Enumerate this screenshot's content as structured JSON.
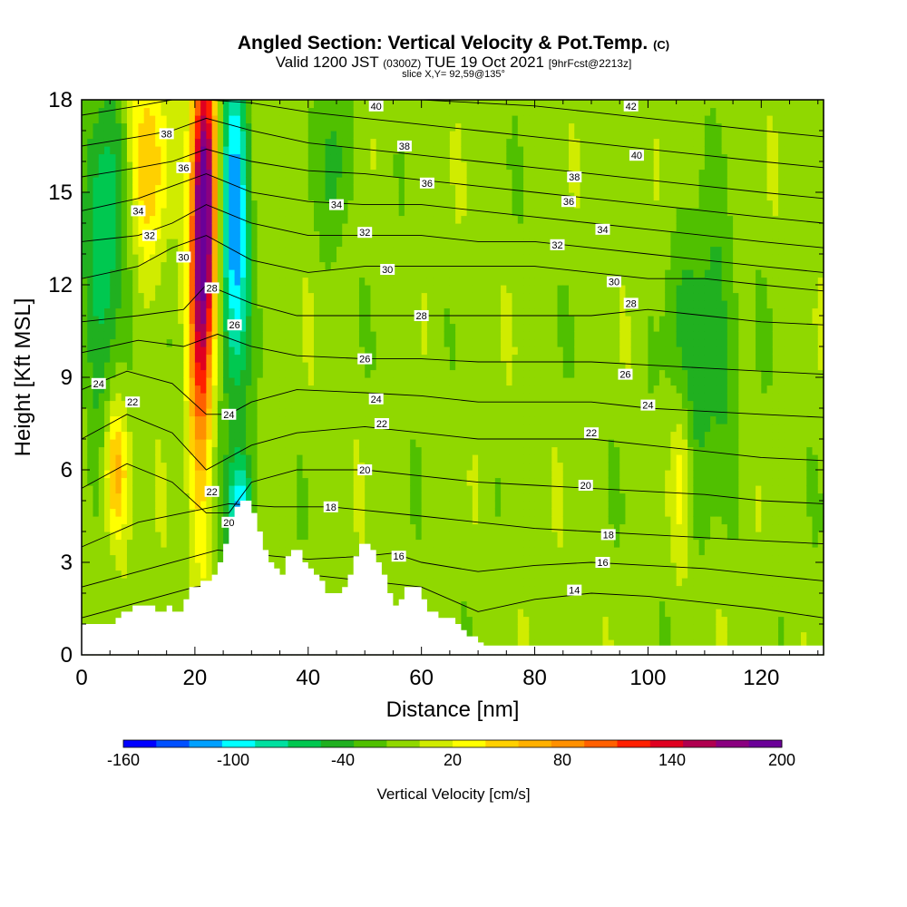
{
  "title": {
    "main": "Angled Section: Vertical Velocity & Pot.Temp.",
    "main_suffix": "(C)",
    "valid_prefix": "Valid 1200 JST",
    "valid_zulu": "(0300Z)",
    "valid_date": "TUE 19 Oct 2021",
    "forecast": "[9hrFcst@2213z]",
    "slice": "slice X,Y= 92,59@135°"
  },
  "chart_data": {
    "type": "heatmap",
    "title": "Angled Section: Vertical Velocity & Pot.Temp.",
    "xlabel": "Distance [nm]",
    "ylabel": "Height [Kft MSL]",
    "xlim": [
      0,
      131
    ],
    "ylim": [
      0,
      18
    ],
    "x_ticks": [
      0,
      20,
      40,
      60,
      80,
      100,
      120
    ],
    "y_ticks": [
      0,
      3,
      6,
      9,
      12,
      15,
      18
    ],
    "colorbar": {
      "label": "Vertical Velocity [cm/s]",
      "ticks": [
        -160,
        -100,
        -40,
        20,
        80,
        140,
        200
      ],
      "min": -160,
      "max": 200,
      "step": 20,
      "colors": [
        "#0000ff",
        "#0050ff",
        "#00a0ff",
        "#00ffff",
        "#00e0a0",
        "#00c850",
        "#20b020",
        "#50c000",
        "#90d800",
        "#d0ec00",
        "#ffff00",
        "#ffd000",
        "#ffb000",
        "#ff9000",
        "#ff6000",
        "#ff2000",
        "#e00020",
        "#b00050",
        "#8a0080",
        "#6a0098"
      ]
    },
    "velocity_features": [
      {
        "x": 21,
        "y": 12,
        "v": 150,
        "sx": 1.5,
        "sy": 5
      },
      {
        "x": 22,
        "y": 15,
        "v": 150,
        "sx": 1.4,
        "sy": 3
      },
      {
        "x": 27,
        "y": 14,
        "v": -130,
        "sx": 1.8,
        "sy": 4
      },
      {
        "x": 28,
        "y": 4.5,
        "v": -120,
        "sx": 1.5,
        "sy": 1.4
      },
      {
        "x": 6,
        "y": 6,
        "v": 90,
        "sx": 1.5,
        "sy": 1.6
      },
      {
        "x": 4,
        "y": 13,
        "v": -70,
        "sx": 2.5,
        "sy": 4
      },
      {
        "x": 12,
        "y": 16,
        "v": 60,
        "sx": 2.5,
        "sy": 2.5
      },
      {
        "x": 110,
        "y": 10,
        "v": -50,
        "sx": 4,
        "sy": 3
      },
      {
        "x": 106,
        "y": 6,
        "v": 40,
        "sx": 1.2,
        "sy": 2
      },
      {
        "x": 45,
        "y": 16,
        "v": -40,
        "sx": 2,
        "sy": 2
      }
    ],
    "terrain": [
      [
        0,
        1
      ],
      [
        6,
        1
      ],
      [
        6,
        1.2
      ],
      [
        7,
        1.2
      ],
      [
        7,
        1.4
      ],
      [
        9,
        1.4
      ],
      [
        9,
        1.6
      ],
      [
        11,
        1.6
      ],
      [
        11,
        1.6
      ],
      [
        13,
        1.6
      ],
      [
        13,
        1.4
      ],
      [
        15,
        1.4
      ],
      [
        15,
        1.6
      ],
      [
        16,
        1.6
      ],
      [
        16,
        1.4
      ],
      [
        18,
        1.4
      ],
      [
        18,
        1.8
      ],
      [
        19,
        1.8
      ],
      [
        19,
        2.2
      ],
      [
        21,
        2.2
      ],
      [
        21,
        2.4
      ],
      [
        23,
        2.4
      ],
      [
        23,
        2.6
      ],
      [
        24,
        2.6
      ],
      [
        24,
        3
      ],
      [
        25,
        3
      ],
      [
        25,
        3.6
      ],
      [
        26,
        3.6
      ],
      [
        26,
        4.2
      ],
      [
        27,
        4.2
      ],
      [
        27,
        4.8
      ],
      [
        28,
        4.8
      ],
      [
        28,
        5
      ],
      [
        30,
        5
      ],
      [
        30,
        4.6
      ],
      [
        31,
        4.6
      ],
      [
        31,
        4
      ],
      [
        32,
        4
      ],
      [
        32,
        3.4
      ],
      [
        33,
        3.4
      ],
      [
        33,
        3
      ],
      [
        34,
        3
      ],
      [
        34,
        2.8
      ],
      [
        35,
        2.8
      ],
      [
        35,
        2.6
      ],
      [
        36,
        2.6
      ],
      [
        36,
        3.2
      ],
      [
        37,
        3.2
      ],
      [
        37,
        3.4
      ],
      [
        39,
        3.4
      ],
      [
        39,
        3
      ],
      [
        40,
        3
      ],
      [
        40,
        2.8
      ],
      [
        41,
        2.8
      ],
      [
        41,
        2.6
      ],
      [
        42,
        2.6
      ],
      [
        42,
        2.4
      ],
      [
        43,
        2.4
      ],
      [
        43,
        2
      ],
      [
        46,
        2
      ],
      [
        46,
        2.2
      ],
      [
        47,
        2.2
      ],
      [
        47,
        2.6
      ],
      [
        48,
        2.6
      ],
      [
        48,
        3.2
      ],
      [
        49,
        3.2
      ],
      [
        49,
        3.6
      ],
      [
        51,
        3.6
      ],
      [
        51,
        3.4
      ],
      [
        52,
        3.4
      ],
      [
        52,
        3
      ],
      [
        53,
        3
      ],
      [
        53,
        2.6
      ],
      [
        54,
        2.6
      ],
      [
        54,
        2
      ],
      [
        55,
        2
      ],
      [
        55,
        1.6
      ],
      [
        56,
        1.6
      ],
      [
        56,
        1.8
      ],
      [
        57,
        1.8
      ],
      [
        57,
        2.2
      ],
      [
        60,
        2.2
      ],
      [
        60,
        1.8
      ],
      [
        61,
        1.8
      ],
      [
        61,
        1.4
      ],
      [
        63,
        1.4
      ],
      [
        63,
        1.2
      ],
      [
        66,
        1.2
      ],
      [
        66,
        1
      ],
      [
        67,
        1
      ],
      [
        67,
        0.8
      ],
      [
        68,
        0.8
      ],
      [
        68,
        0.6
      ],
      [
        70,
        0.6
      ],
      [
        70,
        0.4
      ],
      [
        71,
        0.4
      ],
      [
        71,
        0.3
      ],
      [
        131,
        0.3
      ]
    ],
    "isentropes": [
      {
        "level": 14,
        "x": [
          0,
          20,
          40,
          60,
          70,
          80,
          90,
          100,
          110,
          120,
          131
        ],
        "y": [
          1.2,
          2.2,
          2.6,
          2.2,
          1.4,
          1.8,
          2.0,
          1.9,
          1.7,
          1.5,
          1.2
        ]
      },
      {
        "level": 16,
        "x": [
          0,
          12,
          24,
          34,
          40,
          50,
          55,
          60,
          70,
          80,
          90,
          100,
          110,
          120,
          131
        ],
        "y": [
          2.2,
          2.8,
          3.4,
          3.2,
          3.1,
          3.2,
          3.3,
          3.0,
          2.7,
          2.9,
          3.0,
          2.9,
          2.8,
          2.6,
          2.4
        ]
      },
      {
        "level": 18,
        "x": [
          0,
          10,
          18,
          26,
          34,
          44,
          60,
          70,
          80,
          90,
          100,
          110,
          120,
          131
        ],
        "y": [
          3.5,
          4.3,
          4.6,
          4.9,
          4.8,
          4.8,
          4.5,
          4.3,
          4.1,
          4.0,
          3.9,
          3.8,
          3.7,
          3.6
        ]
      },
      {
        "level": 20,
        "x": [
          0,
          8,
          16,
          22,
          26,
          30,
          38,
          50,
          60,
          70,
          80,
          90,
          100,
          110,
          120,
          131
        ],
        "y": [
          5.4,
          6.2,
          5.6,
          4.6,
          4.6,
          5.6,
          6.0,
          6.0,
          5.8,
          5.6,
          5.5,
          5.4,
          5.3,
          5.2,
          5.0,
          4.9
        ]
      },
      {
        "level": 22,
        "x": [
          0,
          8,
          16,
          22,
          26,
          30,
          38,
          50,
          60,
          70,
          80,
          90,
          100,
          110,
          120,
          131
        ],
        "y": [
          7.0,
          7.8,
          7.2,
          6.0,
          6.4,
          6.8,
          7.2,
          7.4,
          7.2,
          7.0,
          7.0,
          7.0,
          6.8,
          6.6,
          6.4,
          6.3
        ]
      },
      {
        "level": 24,
        "x": [
          0,
          8,
          16,
          22,
          26,
          30,
          38,
          50,
          60,
          70,
          80,
          90,
          100,
          110,
          120,
          131
        ],
        "y": [
          8.6,
          9.2,
          8.8,
          7.8,
          7.8,
          8.2,
          8.6,
          8.5,
          8.4,
          8.2,
          8.2,
          8.2,
          8.0,
          7.9,
          7.8,
          7.7
        ]
      },
      {
        "level": 26,
        "x": [
          0,
          10,
          18,
          24,
          30,
          38,
          50,
          60,
          70,
          80,
          90,
          100,
          110,
          120,
          131
        ],
        "y": [
          9.8,
          10.2,
          10.0,
          10.4,
          10.0,
          9.7,
          9.6,
          9.6,
          9.5,
          9.5,
          9.5,
          9.4,
          9.3,
          9.2,
          9.1
        ]
      },
      {
        "level": 28,
        "x": [
          0,
          10,
          18,
          22,
          30,
          38,
          50,
          60,
          70,
          80,
          90,
          100,
          110,
          120,
          131
        ],
        "y": [
          10.8,
          11.0,
          11.2,
          12.0,
          11.4,
          11.0,
          11.0,
          11.0,
          11.0,
          11.0,
          11.0,
          11.2,
          11.0,
          10.8,
          10.7
        ]
      },
      {
        "level": 30,
        "x": [
          0,
          10,
          16,
          22,
          30,
          40,
          50,
          60,
          70,
          80,
          90,
          100,
          110,
          120,
          131
        ],
        "y": [
          12.2,
          12.6,
          13.2,
          13.6,
          12.8,
          12.4,
          12.6,
          12.6,
          12.6,
          12.6,
          12.4,
          12.2,
          12.2,
          12.0,
          11.8
        ]
      },
      {
        "level": 32,
        "x": [
          0,
          10,
          16,
          22,
          30,
          40,
          50,
          60,
          70,
          80,
          90,
          100,
          110,
          120,
          131
        ],
        "y": [
          13.4,
          13.6,
          14.0,
          14.6,
          14.0,
          13.6,
          13.6,
          13.6,
          13.4,
          13.4,
          13.2,
          13.0,
          12.8,
          12.6,
          12.4
        ]
      },
      {
        "level": 34,
        "x": [
          0,
          10,
          16,
          22,
          30,
          40,
          50,
          60,
          70,
          80,
          90,
          100,
          110,
          120,
          131
        ],
        "y": [
          14.4,
          14.8,
          15.2,
          15.6,
          15.0,
          14.7,
          14.6,
          14.6,
          14.4,
          14.2,
          14.0,
          13.8,
          13.6,
          13.4,
          13.2
        ]
      },
      {
        "level": 36,
        "x": [
          0,
          10,
          16,
          22,
          30,
          40,
          50,
          60,
          70,
          80,
          90,
          100,
          110,
          120,
          131
        ],
        "y": [
          15.5,
          15.8,
          16.0,
          16.4,
          16.0,
          15.7,
          15.6,
          15.4,
          15.2,
          15.0,
          14.8,
          14.6,
          14.4,
          14.2,
          14.0
        ]
      },
      {
        "level": 38,
        "x": [
          0,
          10,
          16,
          22,
          30,
          40,
          50,
          60,
          70,
          80,
          90,
          100,
          110,
          120,
          131
        ],
        "y": [
          16.5,
          16.8,
          17.0,
          17.4,
          17.0,
          16.6,
          16.4,
          16.2,
          16.0,
          15.8,
          15.6,
          15.4,
          15.2,
          15.0,
          14.8
        ]
      },
      {
        "level": 40,
        "x": [
          0,
          10,
          16,
          22,
          30,
          40,
          50,
          60,
          70,
          80,
          90,
          100,
          110,
          120,
          131
        ],
        "y": [
          17.5,
          17.8,
          18.0,
          18.0,
          17.9,
          17.6,
          17.4,
          17.2,
          17.0,
          16.8,
          16.6,
          16.4,
          16.2,
          16.0,
          15.8
        ]
      },
      {
        "level": 42,
        "x": [
          40,
          50,
          60,
          70,
          80,
          90,
          100,
          110,
          120,
          131
        ],
        "y": [
          18.0,
          18.0,
          18.0,
          17.9,
          17.8,
          17.6,
          17.4,
          17.2,
          17.0,
          16.8
        ]
      }
    ],
    "contour_labels": [
      {
        "text": "42",
        "x": 97,
        "y": 17.8
      },
      {
        "text": "40",
        "x": 52,
        "y": 17.8
      },
      {
        "text": "40",
        "x": 98,
        "y": 16.2
      },
      {
        "text": "38",
        "x": 15,
        "y": 16.9
      },
      {
        "text": "38",
        "x": 57,
        "y": 16.5
      },
      {
        "text": "38",
        "x": 87,
        "y": 15.5
      },
      {
        "text": "36",
        "x": 18,
        "y": 15.8
      },
      {
        "text": "36",
        "x": 61,
        "y": 15.3
      },
      {
        "text": "36",
        "x": 86,
        "y": 14.7
      },
      {
        "text": "34",
        "x": 10,
        "y": 14.4
      },
      {
        "text": "34",
        "x": 45,
        "y": 14.6
      },
      {
        "text": "34",
        "x": 92,
        "y": 13.8
      },
      {
        "text": "32",
        "x": 12,
        "y": 13.6
      },
      {
        "text": "32",
        "x": 50,
        "y": 13.7
      },
      {
        "text": "32",
        "x": 84,
        "y": 13.3
      },
      {
        "text": "30",
        "x": 18,
        "y": 12.9
      },
      {
        "text": "30",
        "x": 54,
        "y": 12.5
      },
      {
        "text": "30",
        "x": 94,
        "y": 12.1
      },
      {
        "text": "28",
        "x": 23,
        "y": 11.9
      },
      {
        "text": "28",
        "x": 60,
        "y": 11.0
      },
      {
        "text": "28",
        "x": 97,
        "y": 11.4
      },
      {
        "text": "26",
        "x": 27,
        "y": 10.7
      },
      {
        "text": "26",
        "x": 50,
        "y": 9.6
      },
      {
        "text": "26",
        "x": 96,
        "y": 9.1
      },
      {
        "text": "24",
        "x": 3,
        "y": 8.8
      },
      {
        "text": "24",
        "x": 26,
        "y": 7.8
      },
      {
        "text": "24",
        "x": 52,
        "y": 8.3
      },
      {
        "text": "24",
        "x": 100,
        "y": 8.1
      },
      {
        "text": "22",
        "x": 9,
        "y": 8.2
      },
      {
        "text": "22",
        "x": 53,
        "y": 7.5
      },
      {
        "text": "22",
        "x": 90,
        "y": 7.2
      },
      {
        "text": "22",
        "x": 23,
        "y": 5.3
      },
      {
        "text": "20",
        "x": 50,
        "y": 6.0
      },
      {
        "text": "20",
        "x": 89,
        "y": 5.5
      },
      {
        "text": "20",
        "x": 26,
        "y": 4.3
      },
      {
        "text": "18",
        "x": 44,
        "y": 4.8
      },
      {
        "text": "18",
        "x": 93,
        "y": 3.9
      },
      {
        "text": "16",
        "x": 56,
        "y": 3.2
      },
      {
        "text": "16",
        "x": 92,
        "y": 3.0
      },
      {
        "text": "14",
        "x": 87,
        "y": 2.1
      }
    ]
  }
}
